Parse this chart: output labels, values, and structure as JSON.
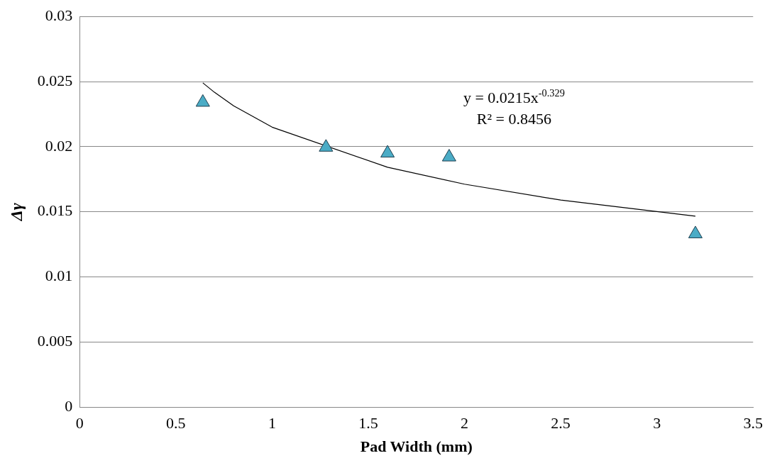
{
  "chart_data": {
    "type": "scatter",
    "xlabel": "Pad Width (mm)",
    "ylabel": "Δγ",
    "series": [
      {
        "color": "#4bacc6",
        "x": [
          0.64,
          1.28,
          1.6,
          1.92,
          3.2
        ],
        "values": [
          0.0234,
          0.01995,
          0.0195,
          0.0192,
          0.0133
        ]
      },
      {
        "type": "line",
        "color": "#000000",
        "marker": "none",
        "x": [
          0.64,
          0.7,
          0.8,
          1,
          1.6,
          2,
          2.5,
          3.2
        ],
        "values": [
          0.0249,
          0.02418,
          0.02314,
          0.0215,
          0.01842,
          0.01712,
          0.0159,
          0.01466
        ]
      }
    ],
    "annotations": [
      "y = 0.0215x$^{-0.329}$",
      "R² = 0.8456"
    ],
    "marker": "triangle",
    "grid": "y",
    "legend": false,
    "xlim": [
      0,
      3.5
    ],
    "xticks": [
      0,
      0.5,
      1,
      1.5,
      2,
      2.5,
      3,
      3.5
    ],
    "ylim": [
      0,
      0.03
    ],
    "yticks": [
      0,
      0.005,
      0.01,
      0.015,
      0.02,
      0.025,
      0.03
    ]
  }
}
